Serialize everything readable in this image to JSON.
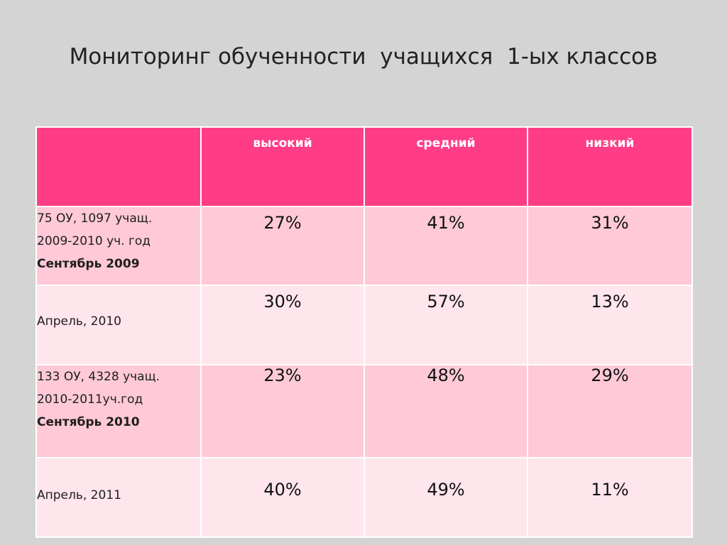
{
  "title": "Мониторинг обученности  учащихся  1-ых классов",
  "table": {
    "headers": [
      "",
      "высокий",
      "средний",
      "низкий"
    ],
    "rows": [
      {
        "label_lines": [
          "75 ОУ, 1097 учащ.",
          "2009-2010 уч. год"
        ],
        "label_bold": "Сентябрь 2009",
        "values": [
          "27%",
          "41%",
          "31%"
        ]
      },
      {
        "label_lines": [
          "Апрель, 2010"
        ],
        "label_bold": "",
        "values": [
          "30%",
          "57%",
          "13%"
        ]
      },
      {
        "label_lines": [
          "133 ОУ, 4328 учащ.",
          "2010-2011уч.год"
        ],
        "label_bold": "Сентябрь 2010",
        "values": [
          "23%",
          "48%",
          "29%"
        ]
      },
      {
        "label_lines": [
          "Апрель, 2011"
        ],
        "label_bold": "",
        "values": [
          "40%",
          "49%",
          "11%"
        ]
      }
    ]
  },
  "colors": {
    "background": "#d4d4d4",
    "header": "#ff3d86",
    "row_dark": "#ffc9d7",
    "row_light": "#ffe5ec"
  }
}
